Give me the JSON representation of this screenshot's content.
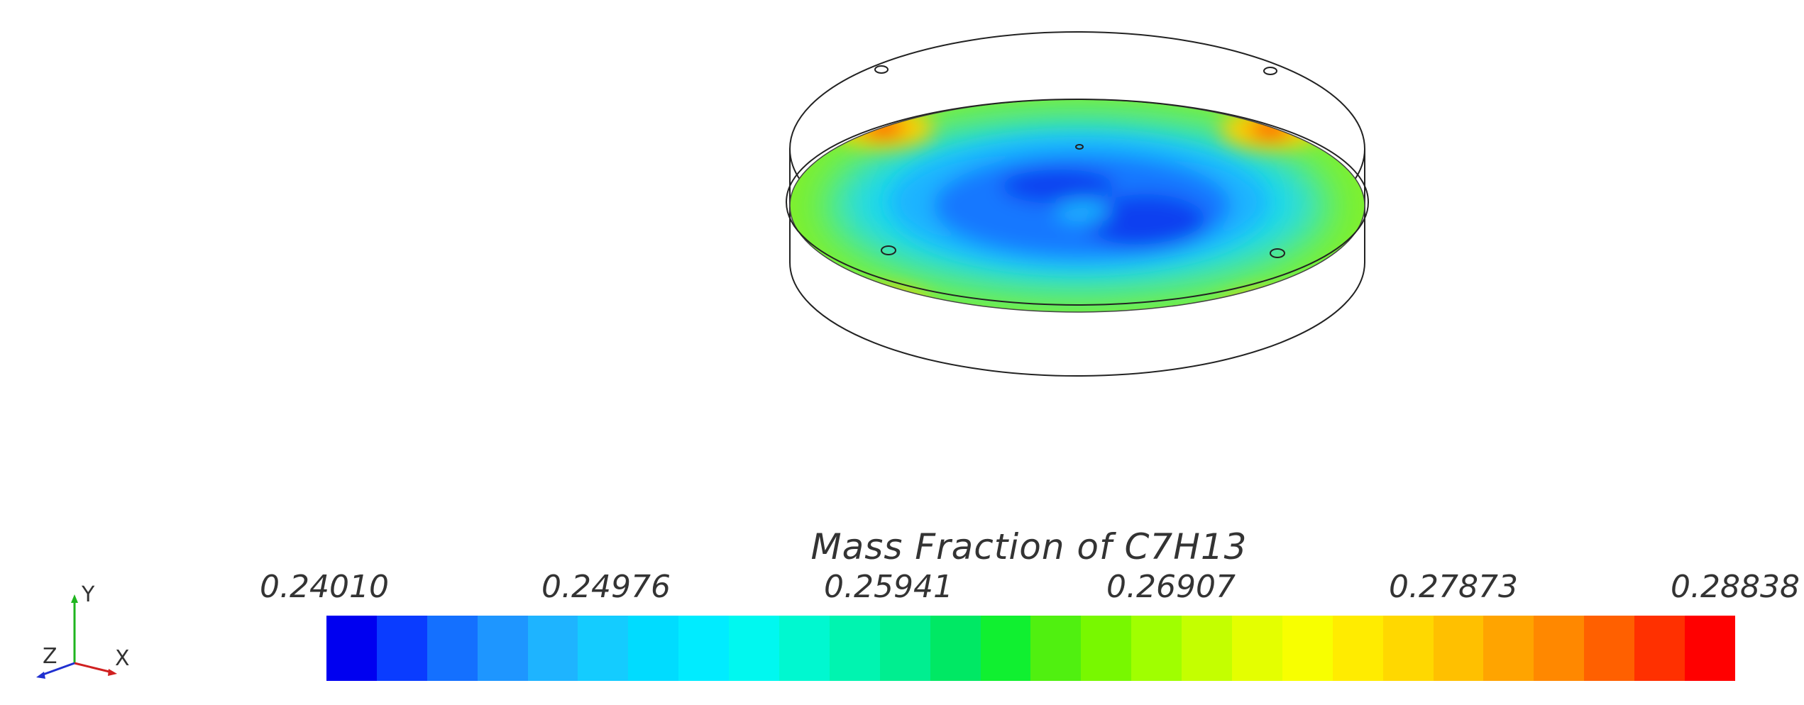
{
  "legend": {
    "title": "Mass Fraction of C7H13",
    "ticks": [
      "0.24010",
      "0.24976",
      "0.25941",
      "0.26907",
      "0.27873",
      "0.28838"
    ],
    "min": 0.2401,
    "max": 0.28838,
    "colors": [
      "#0000f0",
      "#0a3cff",
      "#1470ff",
      "#1e96ff",
      "#1eb4ff",
      "#14ccff",
      "#00dcff",
      "#00ecff",
      "#00f8f0",
      "#00f8d0",
      "#00f4b0",
      "#00ee90",
      "#00e864",
      "#10f030",
      "#50f010",
      "#78f800",
      "#a0ff00",
      "#c4ff00",
      "#e4ff00",
      "#f8ff00",
      "#ffec00",
      "#ffd800",
      "#ffc000",
      "#ffa400",
      "#ff8800",
      "#ff6000",
      "#ff3000",
      "#ff0000"
    ]
  },
  "axes_triad": {
    "x": "X",
    "y": "Y",
    "z": "Z"
  }
}
